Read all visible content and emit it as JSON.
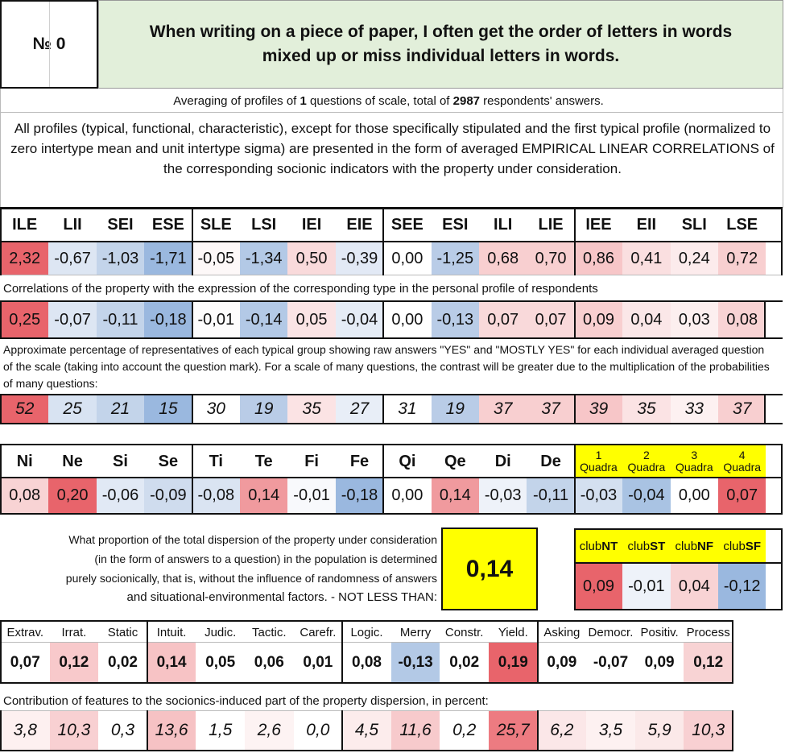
{
  "header": {
    "number_label": "№ 0",
    "question": "When writing on a piece of paper, I often get the order of letters in words mixed up or miss individual letters in words."
  },
  "averaging": {
    "prefix": "Averaging of profiles of ",
    "questions": "1",
    "middle": " questions of scale, total of ",
    "respondents": "2987",
    "suffix": " respondents' answers."
  },
  "description": "All profiles (typical, functional, characteristic), except for those specifically stipulated and the first typical profile (normalized to zero intertype mean and unit intertype sigma) are presented in the form of averaged EMPIRICAL LINEAR CORRELATIONS of the corresponding socionic indicators with the property under consideration.",
  "types": {
    "labels": [
      "ILE",
      "LII",
      "SEI",
      "ESE",
      "SLE",
      "LSI",
      "IEI",
      "EIE",
      "SEE",
      "ESI",
      "ILI",
      "LIE",
      "IEE",
      "EII",
      "SLI",
      "LSE"
    ],
    "profile": [
      "2,32",
      "-0,67",
      "-1,03",
      "-1,71",
      "-0,05",
      "-1,34",
      "0,50",
      "-0,39",
      "0,00",
      "-1,25",
      "0,68",
      "0,70",
      "0,86",
      "0,41",
      "0,24",
      "0,72"
    ],
    "profile_colors": [
      "#e8646b",
      "#dde6f3",
      "#c3d4ea",
      "#9ab8df",
      "#fdf8f8",
      "#b3c9e6",
      "#f9dadb",
      "#e2e9f5",
      "#ffffff",
      "#b9cce7",
      "#f8cfd0",
      "#f8cfd0",
      "#f7c6c8",
      "#fadfe0",
      "#fcebec",
      "#f8cfd0"
    ],
    "correlation_note": "Correlations of the property with the expression of the corresponding type in the personal profile of respondents",
    "correlations": [
      "0,25",
      "-0,07",
      "-0,11",
      "-0,18",
      "-0,01",
      "-0,14",
      "0,05",
      "-0,04",
      "0,00",
      "-0,13",
      "0,07",
      "0,07",
      "0,09",
      "0,04",
      "0,03",
      "0,08"
    ],
    "correlation_colors": [
      "#e8646b",
      "#dde6f3",
      "#c3d4ea",
      "#9ab8df",
      "#fdfcfc",
      "#b3c9e6",
      "#fae4e5",
      "#e5ecf6",
      "#ffffff",
      "#b9cce7",
      "#f9d9da",
      "#f9d9da",
      "#f8cfd0",
      "#fbe7e8",
      "#fcefef",
      "#f8d3d4"
    ],
    "percent_note": "Approximate percentage of representatives of each typical group showing raw answers \"YES\" and \"MOSTLY YES\" for each individual averaged question of the scale (taking into account the question mark). For a scale of many questions, the contrast will be greater due to the multiplication of the probabilities of many questions:",
    "percents": [
      "52",
      "25",
      "21",
      "15",
      "30",
      "19",
      "35",
      "27",
      "31",
      "19",
      "37",
      "37",
      "39",
      "35",
      "33",
      "37"
    ],
    "percent_colors": [
      "#e8646b",
      "#d8e3f2",
      "#c3d4ea",
      "#9ab8df",
      "#ffffff",
      "#b9cce7",
      "#fbe3e4",
      "#e8eef7",
      "#ffffff",
      "#b9cce7",
      "#f8cfd0",
      "#f8cfd0",
      "#f7c6c8",
      "#fbe3e4",
      "#fdf1f1",
      "#f8cfd0"
    ]
  },
  "functions": {
    "labels": [
      "Ni",
      "Ne",
      "Si",
      "Se",
      "Ti",
      "Te",
      "Fi",
      "Fe",
      "Qi",
      "Qe",
      "Di",
      "De"
    ],
    "values": [
      "0,08",
      "0,20",
      "-0,06",
      "-0,09",
      "-0,08",
      "0,14",
      "-0,01",
      "-0,18",
      "0,00",
      "0,14",
      "-0,03",
      "-0,11"
    ],
    "colors": [
      "#f8d3d4",
      "#e8646b",
      "#e1e9f5",
      "#cfdcee",
      "#dae4f2",
      "#f09a9e",
      "#f8f9fc",
      "#9ab8df",
      "#ffffff",
      "#f09a9e",
      "#eef2f9",
      "#c3d4ea"
    ]
  },
  "quadras": {
    "labels": [
      [
        "1",
        "Quadra"
      ],
      [
        "2",
        "Quadra"
      ],
      [
        "3",
        "Quadra"
      ],
      [
        "4",
        "Quadra"
      ]
    ],
    "values": [
      "-0,03",
      "-0,04",
      "0,00",
      "0,07"
    ],
    "colors": [
      "#d4e0f0",
      "#a9c3e3",
      "#ffffff",
      "#e8646b"
    ],
    "header_color": "#ffff00"
  },
  "dispersion": {
    "text_lines": [
      "What proportion of the total dispersion of the property under consideration",
      "(in the form of answers to a question) in the population is determined",
      "purely socionically, that is, without the influence of randomness of answers",
      "and situational-environmental factors. - NOT LESS THAN:"
    ],
    "value": "0,14",
    "value_bg": "#ffff00"
  },
  "clubs": {
    "labels": [
      [
        "club",
        "NT"
      ],
      [
        "club",
        "ST"
      ],
      [
        "club",
        "NF"
      ],
      [
        "club",
        "SF"
      ]
    ],
    "values": [
      "0,09",
      "-0,01",
      "0,04",
      "-0,12"
    ],
    "colors": [
      "#e8646b",
      "#eef2f9",
      "#f8d3d4",
      "#9ab8df"
    ],
    "header_color": "#ffff00"
  },
  "features": {
    "labels": [
      "Extrav.",
      "Irrat.",
      "Static",
      "Intuit.",
      "Judic.",
      "Tactic.",
      "Carefr.",
      "Logic.",
      "Merry",
      "Constr.",
      "Yield.",
      "Asking",
      "Democr.",
      "Positiv.",
      "Process"
    ],
    "values": [
      "0,07",
      "0,12",
      "0,02",
      "0,14",
      "0,05",
      "0,06",
      "0,01",
      "0,08",
      "-0,13",
      "0,02",
      "0,19",
      "0,09",
      "-0,07",
      "0,09",
      "0,12"
    ],
    "colors": [
      "#ffffff",
      "#f8c9cb",
      "#ffffff",
      "#f7c3c5",
      "#ffffff",
      "#ffffff",
      "#ffffff",
      "#ffffff",
      "#b3c9e6",
      "#ffffff",
      "#e8646b",
      "#ffffff",
      "#ffffff",
      "#ffffff",
      "#f8d3d4"
    ],
    "contribution_note": "Contribution of features to the socionics-induced part of the property dispersion, in percent:",
    "contributions": [
      "3,8",
      "10,3",
      "0,3",
      "13,6",
      "1,5",
      "2,6",
      "0,0",
      "4,5",
      "11,6",
      "0,2",
      "25,7",
      "6,2",
      "3,5",
      "5,9",
      "10,3"
    ],
    "contribution_colors": [
      "#fdf0f0",
      "#f8d0d2",
      "#ffffff",
      "#f6c2c4",
      "#ffffff",
      "#fdf3f3",
      "#ffffff",
      "#fcecec",
      "#f7cacc",
      "#ffffff",
      "#ed7b81",
      "#fbe7e8",
      "#fdf1f1",
      "#fbe9e9",
      "#f8d0d2"
    ]
  }
}
